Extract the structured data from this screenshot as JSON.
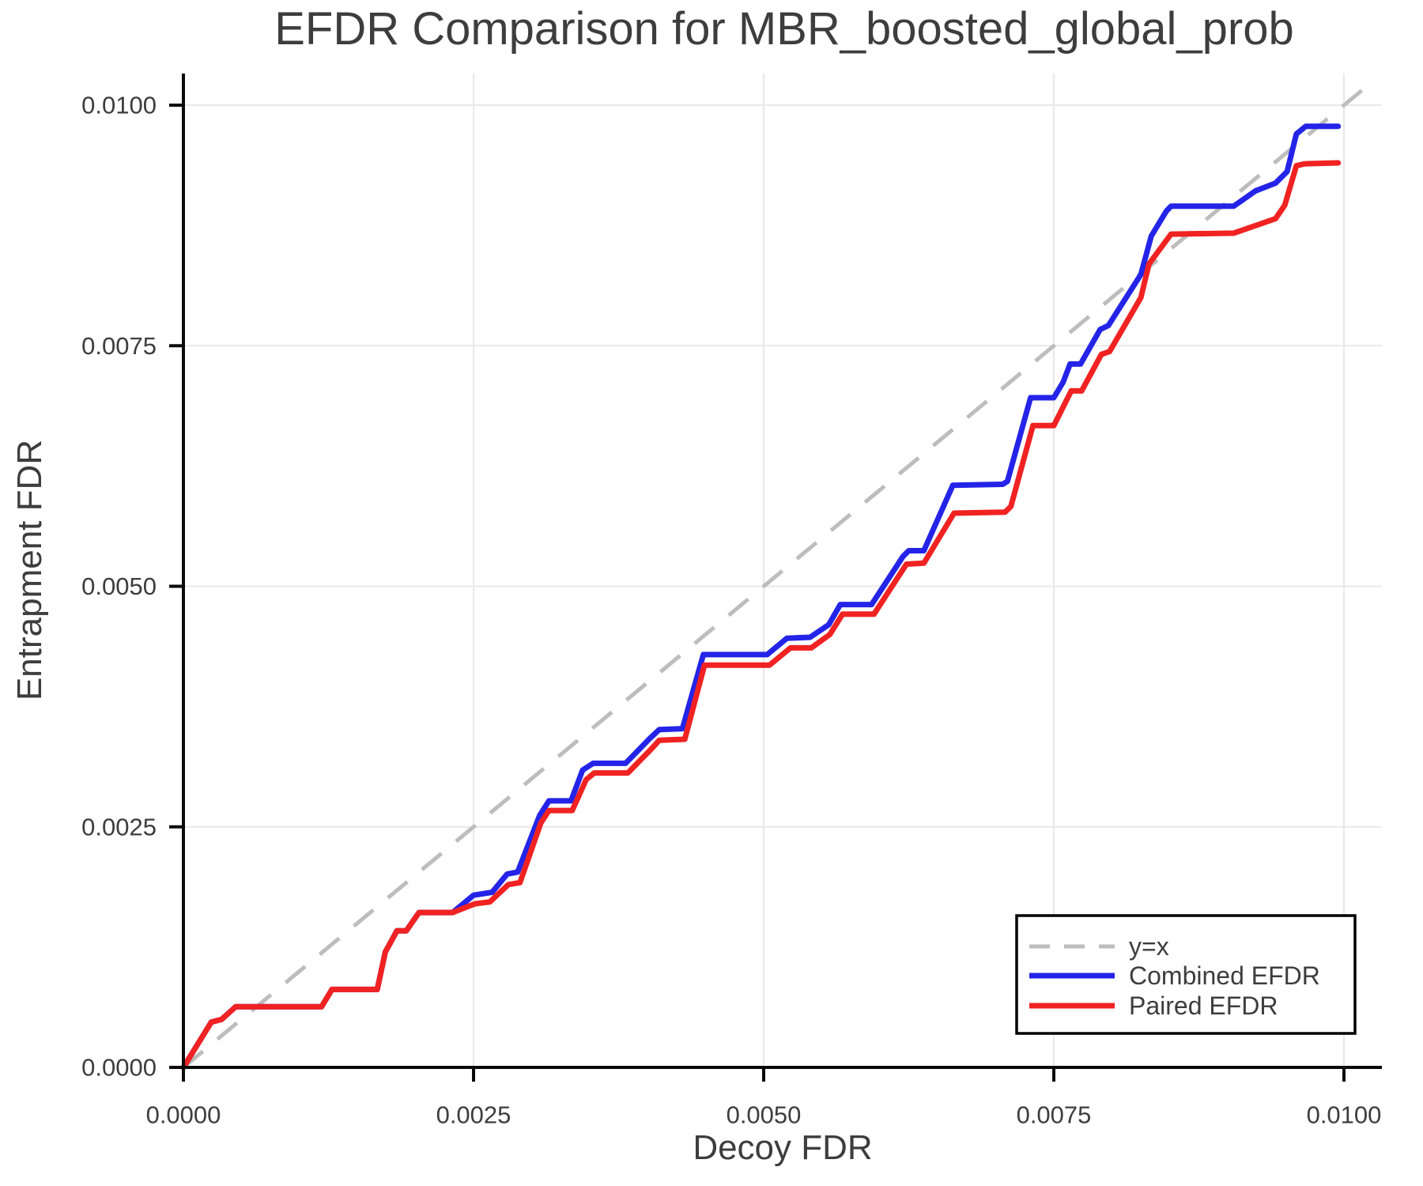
{
  "page": {
    "background": "#FFFFFF"
  },
  "chart_data": {
    "type": "line",
    "title": "EFDR Comparison for MBR_boosted_global_prob",
    "xlabel": "Decoy FDR",
    "ylabel": "Entrapment FDR",
    "xlim": [
      0,
      0.0103
    ],
    "ylim": [
      0,
      0.0103
    ],
    "grid": true,
    "legend": {
      "position": "lower right"
    },
    "axis_ticks": {
      "values": [
        0,
        0.0025,
        0.005,
        0.0075,
        0.01
      ],
      "labels": [
        "0.0000",
        "0.0025",
        "0.0050",
        "0.0075",
        "0.0100"
      ]
    },
    "colors": {
      "grid": "#E8E8E8",
      "spine": "#0A0A0A",
      "text": "#3D3D3D",
      "legend_border": "#000000"
    },
    "series": [
      {
        "name": "y=x",
        "style": "dashed",
        "color": "#BDBDBD",
        "width": 5,
        "dash": "32 24",
        "points": [
          [
            0,
            0
          ],
          [
            0.01026,
            0.01026
          ]
        ]
      },
      {
        "name": "Combined EFDR",
        "style": "solid",
        "color": "#2424E8",
        "width": 7,
        "points": [
          [
            0.0,
            0.0
          ],
          [
            0.00024,
            0.00047
          ],
          [
            0.00033,
            0.0005
          ],
          [
            0.00045,
            0.00063
          ],
          [
            0.00119,
            0.00063
          ],
          [
            0.00128,
            0.00081
          ],
          [
            0.00167,
            0.00081
          ],
          [
            0.00174,
            0.0012
          ],
          [
            0.00184,
            0.00142
          ],
          [
            0.00192,
            0.00142
          ],
          [
            0.00203,
            0.00161
          ],
          [
            0.00232,
            0.00161
          ],
          [
            0.0025,
            0.00179
          ],
          [
            0.00266,
            0.00182
          ],
          [
            0.00279,
            0.00201
          ],
          [
            0.00288,
            0.00203
          ],
          [
            0.00307,
            0.00262
          ],
          [
            0.00315,
            0.00277
          ],
          [
            0.00334,
            0.00277
          ],
          [
            0.00344,
            0.00309
          ],
          [
            0.00353,
            0.00316
          ],
          [
            0.00381,
            0.00316
          ],
          [
            0.00402,
            0.00342
          ],
          [
            0.0041,
            0.00351
          ],
          [
            0.0043,
            0.00352
          ],
          [
            0.00448,
            0.00429
          ],
          [
            0.00503,
            0.00429
          ],
          [
            0.0052,
            0.00446
          ],
          [
            0.0054,
            0.00447
          ],
          [
            0.00556,
            0.0046
          ],
          [
            0.00566,
            0.00481
          ],
          [
            0.00593,
            0.00481
          ],
          [
            0.0062,
            0.00531
          ],
          [
            0.00625,
            0.00537
          ],
          [
            0.00638,
            0.00537
          ],
          [
            0.00663,
            0.00605
          ],
          [
            0.00706,
            0.00606
          ],
          [
            0.0071,
            0.00609
          ],
          [
            0.0073,
            0.00696
          ],
          [
            0.0075,
            0.00696
          ],
          [
            0.00758,
            0.00712
          ],
          [
            0.00764,
            0.00731
          ],
          [
            0.00773,
            0.00731
          ],
          [
            0.0079,
            0.00767
          ],
          [
            0.00797,
            0.00771
          ],
          [
            0.00825,
            0.00824
          ],
          [
            0.00834,
            0.00864
          ],
          [
            0.00847,
            0.0089
          ],
          [
            0.00851,
            0.00895
          ],
          [
            0.00905,
            0.00895
          ],
          [
            0.00924,
            0.00911
          ],
          [
            0.00941,
            0.00919
          ],
          [
            0.00951,
            0.00931
          ],
          [
            0.00959,
            0.0097
          ],
          [
            0.00967,
            0.00978
          ],
          [
            0.00995,
            0.00978
          ]
        ]
      },
      {
        "name": "Paired EFDR",
        "style": "solid",
        "color": "#F02222",
        "width": 7,
        "points": [
          [
            0.0,
            0.0
          ],
          [
            0.00024,
            0.00047
          ],
          [
            0.00033,
            0.0005
          ],
          [
            0.00045,
            0.00063
          ],
          [
            0.00119,
            0.00063
          ],
          [
            0.00128,
            0.00081
          ],
          [
            0.00167,
            0.00081
          ],
          [
            0.00174,
            0.0012
          ],
          [
            0.00184,
            0.00142
          ],
          [
            0.00192,
            0.00142
          ],
          [
            0.00203,
            0.00161
          ],
          [
            0.00232,
            0.00161
          ],
          [
            0.00251,
            0.0017
          ],
          [
            0.00264,
            0.00172
          ],
          [
            0.0028,
            0.0019
          ],
          [
            0.0029,
            0.00192
          ],
          [
            0.00308,
            0.00254
          ],
          [
            0.00315,
            0.00267
          ],
          [
            0.00335,
            0.00267
          ],
          [
            0.00347,
            0.00299
          ],
          [
            0.00354,
            0.00306
          ],
          [
            0.00383,
            0.00306
          ],
          [
            0.00404,
            0.00332
          ],
          [
            0.0041,
            0.0034
          ],
          [
            0.00432,
            0.00341
          ],
          [
            0.00449,
            0.00418
          ],
          [
            0.00505,
            0.00418
          ],
          [
            0.00523,
            0.00436
          ],
          [
            0.00541,
            0.00436
          ],
          [
            0.00557,
            0.0045
          ],
          [
            0.00568,
            0.00471
          ],
          [
            0.00595,
            0.00471
          ],
          [
            0.00623,
            0.00523
          ],
          [
            0.00638,
            0.00524
          ],
          [
            0.00664,
            0.00576
          ],
          [
            0.00708,
            0.00577
          ],
          [
            0.00713,
            0.00583
          ],
          [
            0.00732,
            0.00667
          ],
          [
            0.0075,
            0.00667
          ],
          [
            0.00765,
            0.00703
          ],
          [
            0.00774,
            0.00703
          ],
          [
            0.00791,
            0.00741
          ],
          [
            0.00798,
            0.00744
          ],
          [
            0.00825,
            0.008
          ],
          [
            0.00832,
            0.00835
          ],
          [
            0.00851,
            0.00866
          ],
          [
            0.00905,
            0.00867
          ],
          [
            0.00941,
            0.00882
          ],
          [
            0.00949,
            0.00896
          ],
          [
            0.00959,
            0.00937
          ],
          [
            0.00966,
            0.00939
          ],
          [
            0.00995,
            0.0094
          ]
        ]
      }
    ]
  }
}
